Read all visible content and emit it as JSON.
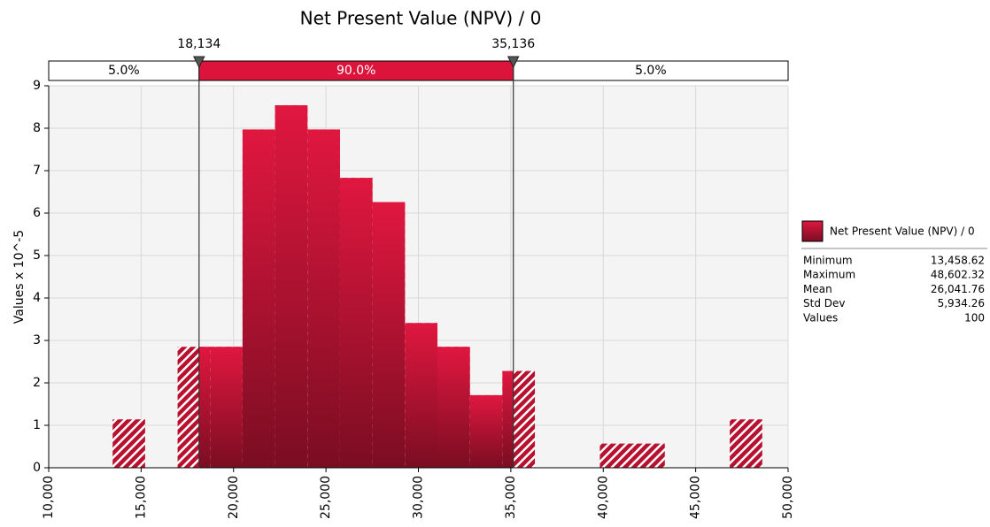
{
  "chart_data": {
    "type": "histogram",
    "title": "Net Present Value (NPV) / 0",
    "ylabel": "Values x 10^-5",
    "bins": [
      13459,
      15216,
      16973,
      18730,
      20487,
      22245,
      24002,
      25759,
      27516,
      29273,
      31030,
      32788,
      34545,
      36302,
      38059,
      39816,
      41574,
      43331,
      45088,
      46845,
      48602
    ],
    "values": [
      1.14,
      0,
      2.85,
      2.85,
      7.97,
      8.54,
      7.97,
      6.83,
      6.26,
      3.41,
      2.85,
      1.71,
      2.28,
      0,
      0,
      0.57,
      0.57,
      0,
      0,
      1.14
    ],
    "color": "#dc143c",
    "xlim": [
      10000,
      50000
    ],
    "xticks": [
      {
        "value": 10000,
        "label": "10,000"
      },
      {
        "value": 15000,
        "label": "15,000"
      },
      {
        "value": 20000,
        "label": "20,000"
      },
      {
        "value": 25000,
        "label": "25,000"
      },
      {
        "value": 30000,
        "label": "30,000"
      },
      {
        "value": 35000,
        "label": "35,000"
      },
      {
        "value": 40000,
        "label": "40,000"
      },
      {
        "value": 45000,
        "label": "45,000"
      },
      {
        "value": 50000,
        "label": "50,000"
      }
    ],
    "ylim": [
      0,
      9
    ],
    "yticks": [
      0,
      1,
      2,
      3,
      4,
      5,
      6,
      7,
      8,
      9
    ],
    "grid": true,
    "delimiters": [
      {
        "value": 18134,
        "label": "18,134"
      },
      {
        "value": 35136,
        "label": "35,136"
      }
    ],
    "regions": [
      {
        "value": 5,
        "label": "5.0%"
      },
      {
        "value": 90,
        "label": "90.0%"
      },
      {
        "value": 5,
        "label": "5.0%"
      }
    ],
    "legend": {
      "name": "Net Present Value (NPV) / 0",
      "stats": [
        [
          "Minimum",
          "13,458.62"
        ],
        [
          "Maximum",
          "48,602.32"
        ],
        [
          "Mean",
          "26,041.76"
        ],
        [
          "Std Dev",
          "5,934.26"
        ],
        [
          "Values",
          "100"
        ]
      ]
    }
  }
}
